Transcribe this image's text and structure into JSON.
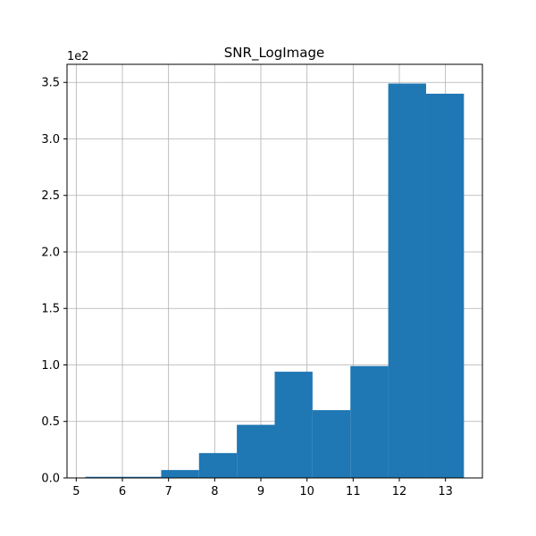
{
  "chart_data": {
    "type": "bar",
    "title": "SNR_LogImage",
    "xlabel": "",
    "ylabel": "",
    "y_offset_label": "1e2",
    "bin_edges": [
      5.2,
      6.02,
      6.84,
      7.66,
      8.48,
      9.3,
      10.12,
      10.94,
      11.76,
      12.58,
      13.4
    ],
    "values": [
      1,
      1,
      7,
      22,
      47,
      94,
      60,
      99,
      349,
      340
    ],
    "xlim": [
      4.8,
      13.8
    ],
    "ylim": [
      0,
      366
    ],
    "x_ticks": [
      5,
      6,
      7,
      8,
      9,
      10,
      11,
      12,
      13
    ],
    "x_tick_labels": [
      "5",
      "6",
      "7",
      "8",
      "9",
      "10",
      "11",
      "12",
      "13"
    ],
    "y_ticks": [
      0,
      50,
      100,
      150,
      200,
      250,
      300,
      350
    ],
    "y_tick_labels": [
      "0.0",
      "0.5",
      "1.0",
      "1.5",
      "2.0",
      "2.5",
      "3.0",
      "3.5"
    ],
    "grid": true,
    "bar_color": "#1f77b4",
    "grid_color": "#b0b0b0"
  }
}
